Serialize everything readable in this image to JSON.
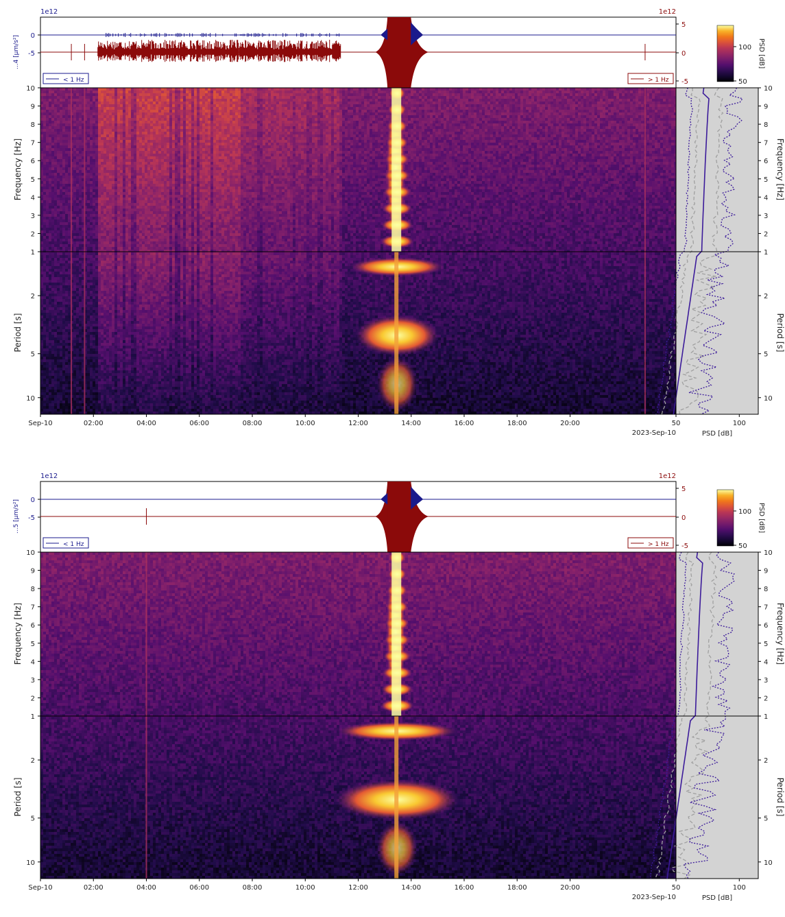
{
  "panels": [
    {
      "id": "top",
      "trace": {
        "left_scale_label": "1e12",
        "right_scale_label": "1e12",
        "left_ylabel": "...4\n[µm/s²]",
        "left_ticks": [
          "0",
          "-5"
        ],
        "right_ticks": [
          "5",
          "0",
          "-5"
        ],
        "legend_low": "< 1 Hz",
        "legend_high": "> 1 Hz"
      },
      "colorbar": {
        "label": "PSD [dB]",
        "ticks": [
          "100",
          "50"
        ]
      },
      "spectrogram": {
        "ylabel_top": "Frequency [Hz]",
        "ylabel_bottom": "Period [s]",
        "freq_ticks": [
          "10",
          "9",
          "8",
          "7",
          "6",
          "5",
          "4",
          "3",
          "2",
          "1"
        ],
        "period_ticks": [
          "2",
          "5",
          "10"
        ],
        "x_ticks": [
          "Sep-10",
          "02:00",
          "04:00",
          "06:00",
          "08:00",
          "10:00",
          "12:00",
          "14:00",
          "16:00",
          "18:00",
          "20:00"
        ],
        "date_label": "2023-Sep-10"
      },
      "psd_side": {
        "x_ticks": [
          "50",
          "100"
        ],
        "xlabel": "PSD [dB]",
        "right_ylabel_top": "Frequency [Hz]",
        "right_ylabel_bottom": "Period [s]"
      }
    },
    {
      "id": "bottom",
      "trace": {
        "left_scale_label": "1e12",
        "right_scale_label": "1e12",
        "left_ylabel": "...5\n[µm/s²]",
        "left_ticks": [
          "0",
          "-5"
        ],
        "right_ticks": [
          "5",
          "0",
          "-5"
        ],
        "legend_low": "< 1 Hz",
        "legend_high": "> 1 Hz"
      },
      "colorbar": {
        "label": "PSD [dB]",
        "ticks": [
          "100",
          "50"
        ]
      },
      "spectrogram": {
        "ylabel_top": "Frequency [Hz]",
        "ylabel_bottom": "Period [s]",
        "freq_ticks": [
          "10",
          "9",
          "8",
          "7",
          "6",
          "5",
          "4",
          "3",
          "2",
          "1"
        ],
        "period_ticks": [
          "2",
          "5",
          "10"
        ],
        "x_ticks": [
          "Sep-10",
          "02:00",
          "04:00",
          "06:00",
          "08:00",
          "10:00",
          "12:00",
          "14:00",
          "16:00",
          "18:00",
          "20:00"
        ],
        "date_label": "2023-Sep-10"
      },
      "psd_side": {
        "x_ticks": [
          "50",
          "100"
        ],
        "xlabel": "PSD [dB]",
        "right_ylabel_top": "Frequency [Hz]",
        "right_ylabel_bottom": "Period [s]"
      }
    }
  ],
  "chart_data": [
    {
      "type": "heatmap",
      "title": "",
      "xlabel": "",
      "ylabel": "Frequency [Hz] / Period [s]",
      "x_range": [
        "Sep-10 00:00",
        "Sep-11 00:00"
      ],
      "y_upper_range_hz": [
        1,
        10
      ],
      "y_lower_range_s": [
        1,
        13
      ],
      "colormap": "inferno",
      "color_range_db": [
        50,
        110
      ],
      "event_time": "13:25",
      "noisy_intervals": [
        [
          "02:10",
          "07:30"
        ],
        [
          "07:30",
          "11:20"
        ]
      ],
      "spike_times": [
        "01:10",
        "01:40",
        "22:50"
      ],
      "psd_range_db": [
        50,
        115
      ]
    },
    {
      "type": "heatmap",
      "title": "",
      "xlabel": "",
      "ylabel": "Frequency [Hz] / Period [s]",
      "x_range": [
        "Sep-10 00:00",
        "Sep-11 00:00"
      ],
      "y_upper_range_hz": [
        1,
        10
      ],
      "y_lower_range_s": [
        1,
        13
      ],
      "colormap": "inferno",
      "color_range_db": [
        50,
        110
      ],
      "event_time": "13:25",
      "noisy_intervals": [],
      "spike_times": [
        "04:00"
      ],
      "psd_range_db": [
        50,
        115
      ]
    }
  ],
  "colors": {
    "low_trace": "#1a1a8c",
    "high_trace": "#8b0a0a",
    "psd_bg": "#d3d3d3",
    "psd_median": "#3b1a9a",
    "psd_dashed": "#a0a0a0"
  }
}
